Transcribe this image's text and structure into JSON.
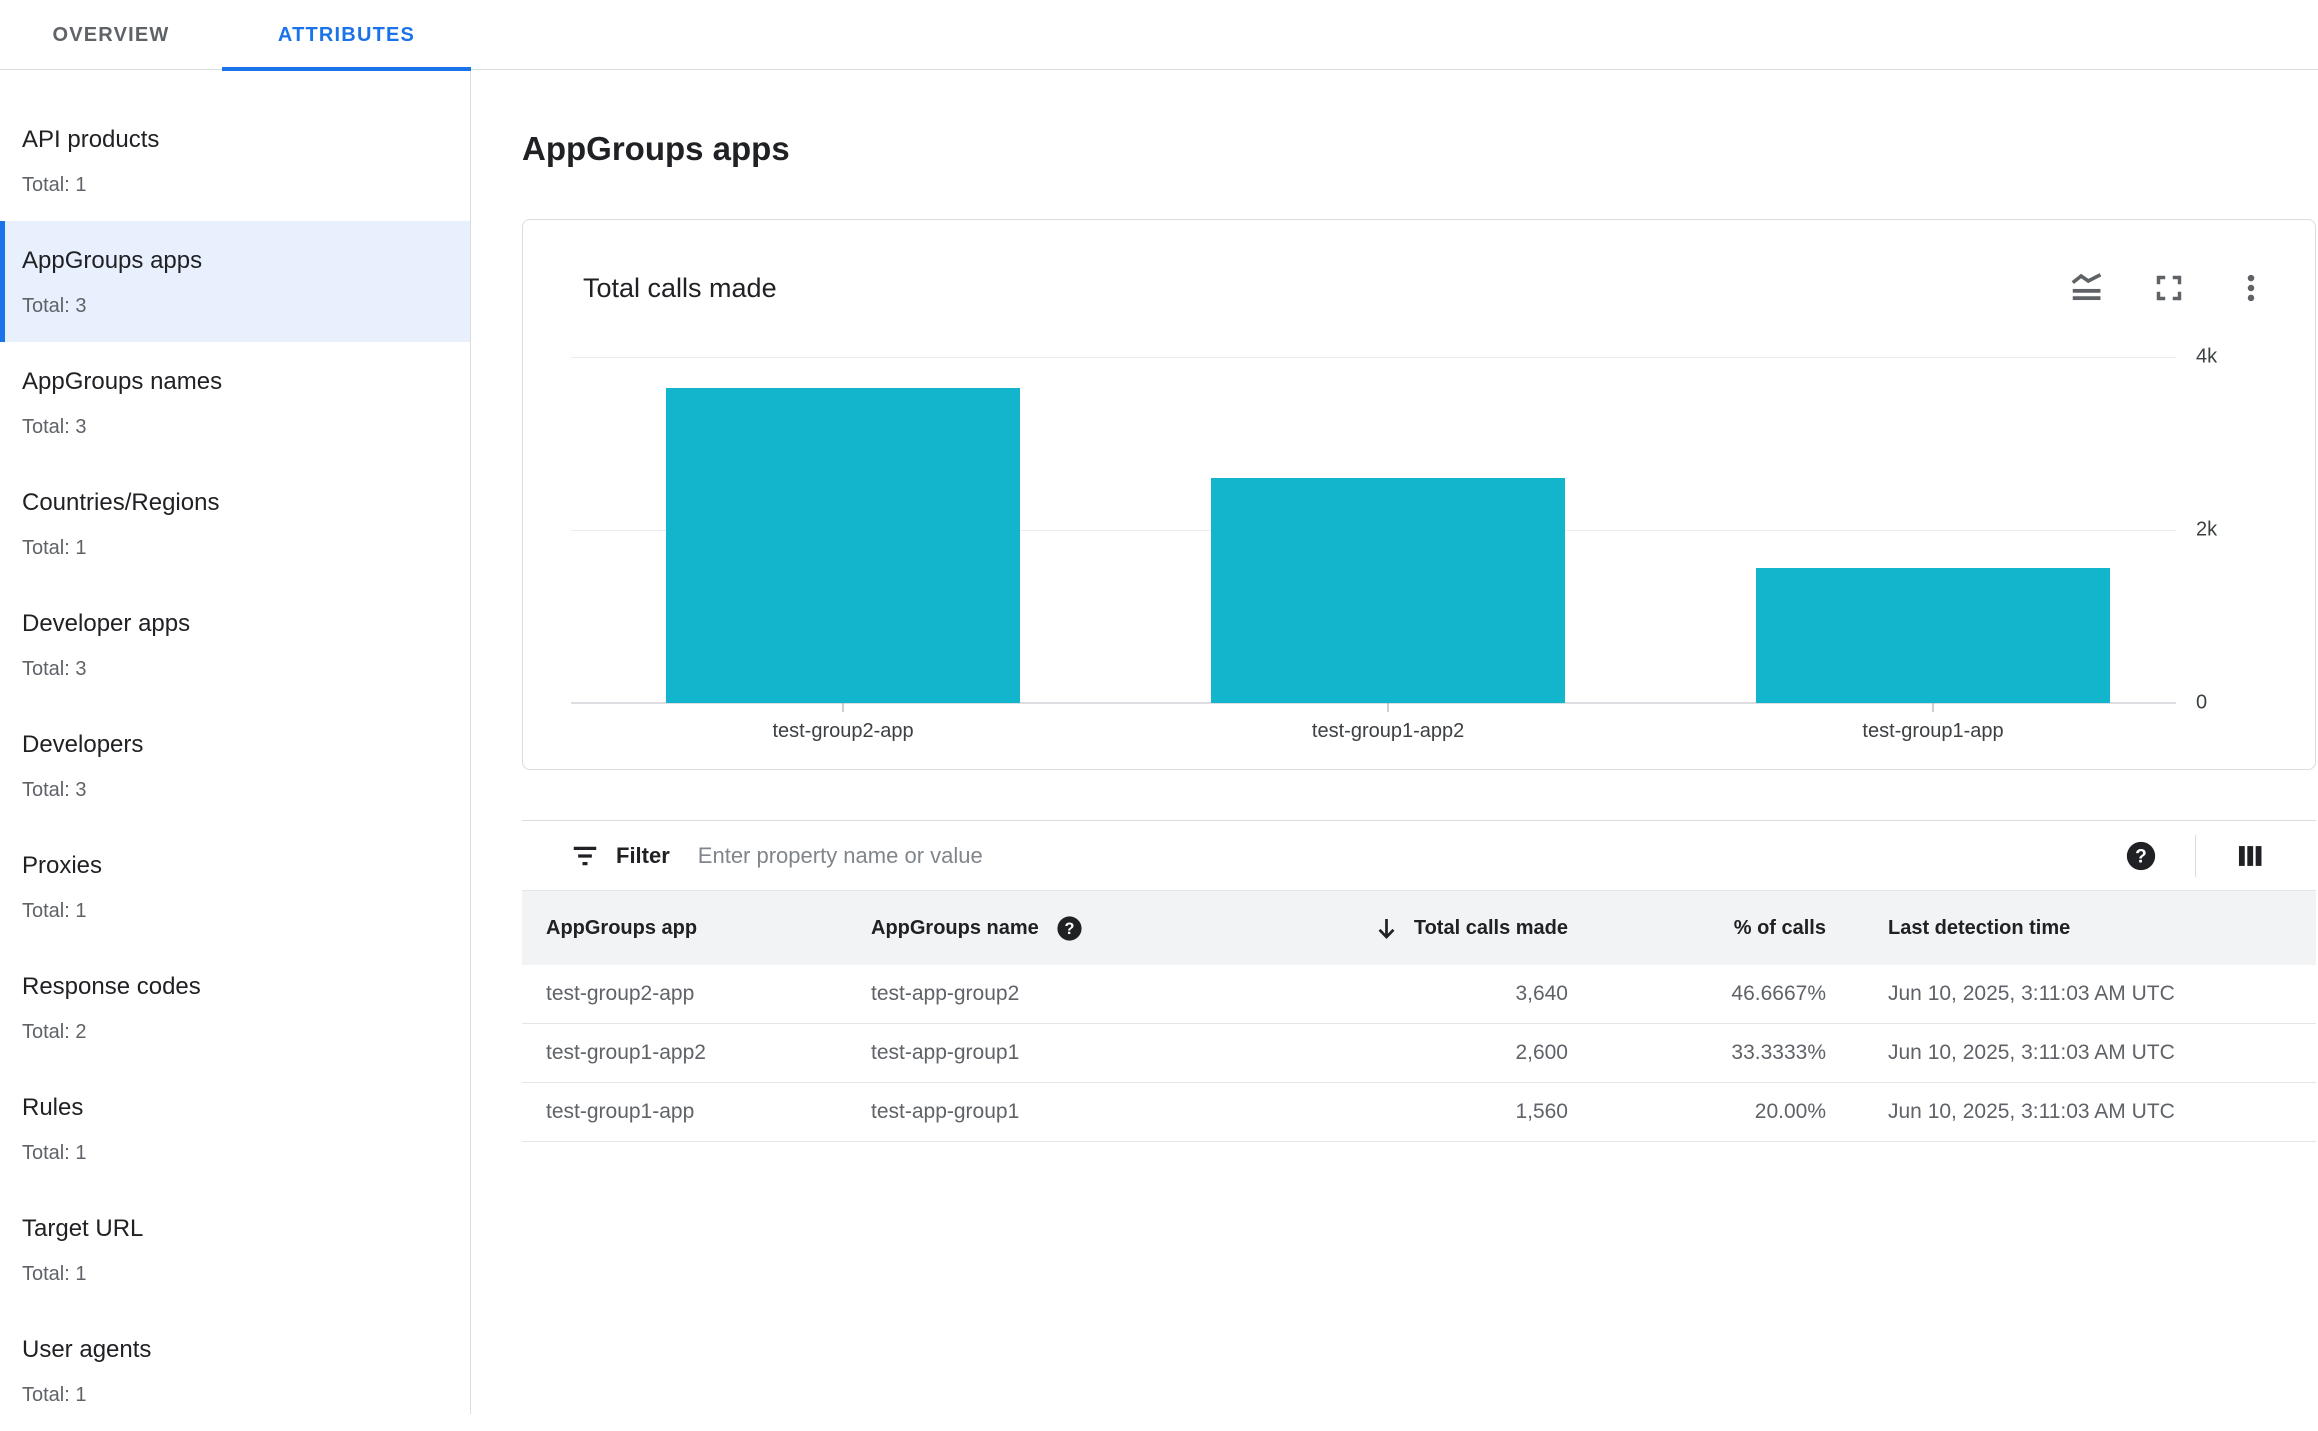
{
  "tabs": {
    "overview": "OVERVIEW",
    "attributes": "ATTRIBUTES"
  },
  "sidebar": {
    "items": [
      {
        "label": "API products",
        "total": "Total: 1"
      },
      {
        "label": "AppGroups apps",
        "total": "Total: 3",
        "selected": true
      },
      {
        "label": "AppGroups names",
        "total": "Total: 3"
      },
      {
        "label": "Countries/Regions",
        "total": "Total: 1"
      },
      {
        "label": "Developer apps",
        "total": "Total: 3"
      },
      {
        "label": "Developers",
        "total": "Total: 3"
      },
      {
        "label": "Proxies",
        "total": "Total: 1"
      },
      {
        "label": "Response codes",
        "total": "Total: 2"
      },
      {
        "label": "Rules",
        "total": "Total: 1"
      },
      {
        "label": "Target URL",
        "total": "Total: 1"
      },
      {
        "label": "User agents",
        "total": "Total: 1"
      }
    ]
  },
  "main": {
    "title": "AppGroups apps",
    "card": {
      "title": "Total calls made",
      "icons": {
        "chart_type": "stacked-line-chart-icon",
        "fullscreen": "fullscreen-icon",
        "menu": "more-vert-icon"
      }
    },
    "filter": {
      "label": "Filter",
      "placeholder": "Enter property name or value"
    },
    "table": {
      "headers": {
        "app": "AppGroups app",
        "name": "AppGroups name",
        "calls": "Total calls made",
        "pct": "% of calls",
        "time": "Last detection time"
      },
      "sort": {
        "column": "calls",
        "direction": "desc"
      },
      "rows": [
        {
          "app": "test-group2-app",
          "name": "test-app-group2",
          "calls": "3,640",
          "pct": "46.6667%",
          "time": "Jun 10, 2025, 3:11:03 AM UTC"
        },
        {
          "app": "test-group1-app2",
          "name": "test-app-group1",
          "calls": "2,600",
          "pct": "33.3333%",
          "time": "Jun 10, 2025, 3:11:03 AM UTC"
        },
        {
          "app": "test-group1-app",
          "name": "test-app-group1",
          "calls": "1,560",
          "pct": "20.00%",
          "time": "Jun 10, 2025, 3:11:03 AM UTC"
        }
      ]
    }
  },
  "chart_data": {
    "type": "bar",
    "title": "Total calls made",
    "categories": [
      "test-group2-app",
      "test-group1-app2",
      "test-group1-app"
    ],
    "values": [
      3640,
      2600,
      1560
    ],
    "xlabel": "",
    "ylabel": "",
    "ylim": [
      0,
      4000
    ],
    "yticks": [
      {
        "value": 4000,
        "label": "4k"
      },
      {
        "value": 2000,
        "label": "2k"
      },
      {
        "value": 0,
        "label": "0"
      }
    ],
    "grid": true,
    "legend": false,
    "bar_color": "#12b5cb"
  },
  "colors": {
    "accent_blue": "#1a73e8",
    "bar_teal": "#12b5cb",
    "selected_bg": "#e8f0fe",
    "text_primary": "#202124",
    "text_secondary": "#5f6368",
    "border": "#dadce0",
    "header_band": "#f1f3f4"
  }
}
